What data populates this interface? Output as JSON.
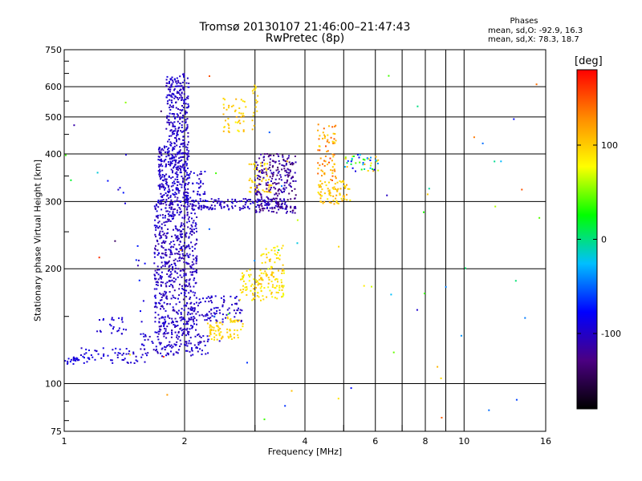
{
  "chart_data": {
    "type": "scatter",
    "title": "Tromsø 20130107 21:46:00–21:47:43",
    "subtitle": "RwPretec (8p)",
    "xlabel": "Frequency [MHz]",
    "ylabel": "Stationary phase Virtual Height [km]",
    "xscale": "log",
    "yscale": "log",
    "xlim": [
      1,
      16
    ],
    "ylim": [
      75,
      750
    ],
    "xticks": [
      1,
      2,
      4,
      6,
      8,
      10,
      16
    ],
    "xtick_labels": [
      "1",
      "2",
      "4",
      "6",
      "8",
      "10",
      "16"
    ],
    "x_minor_ticks": [
      3,
      5,
      7,
      9
    ],
    "yticks": [
      75,
      100,
      200,
      300,
      400,
      500,
      600,
      750
    ],
    "ytick_labels": [
      "75",
      "100",
      "200",
      "300",
      "400",
      "500",
      "600",
      "750"
    ],
    "grid": true,
    "phase_info": {
      "label": "Phases",
      "line_o": "mean, sd,O: -92.9, 16.3",
      "line_x": "mean, sd,X:  78.3, 18.7"
    },
    "colorbar": {
      "title": "[deg]",
      "ticks": [
        -100,
        0,
        100
      ],
      "tick_labels": [
        "-100",
        "0",
        "100"
      ],
      "range": [
        -180,
        180
      ],
      "palette": [
        "#000000",
        "#4b0082",
        "#0000ff",
        "#00bfff",
        "#00ff00",
        "#ffff00",
        "#ff8c00",
        "#ff0000"
      ]
    },
    "clusters": [
      {
        "x": [
          1.0,
          1.08
        ],
        "y": [
          112,
          118
        ],
        "phase": [
          -100,
          -80
        ],
        "count": 20
      },
      {
        "x": [
          1.08,
          1.6
        ],
        "y": [
          113,
          124
        ],
        "phase": [
          -105,
          -85
        ],
        "count": 60
      },
      {
        "x": [
          1.2,
          1.45
        ],
        "y": [
          135,
          150
        ],
        "phase": [
          -100,
          -90
        ],
        "count": 25
      },
      {
        "x": [
          1.25,
          1.45
        ],
        "y": [
          285,
          345
        ],
        "phase": [
          -100,
          -60
        ],
        "count": 5
      },
      {
        "x": [
          1.55,
          2.3
        ],
        "y": [
          118,
          135
        ],
        "phase": [
          -110,
          -90
        ],
        "count": 120
      },
      {
        "x": [
          1.68,
          2.15
        ],
        "y": [
          135,
          300
        ],
        "phase": [
          -115,
          -90
        ],
        "count": 650
      },
      {
        "x": [
          1.72,
          2.05
        ],
        "y": [
          300,
          420
        ],
        "phase": [
          -110,
          -90
        ],
        "count": 300
      },
      {
        "x": [
          1.8,
          2.05
        ],
        "y": [
          420,
          640
        ],
        "phase": [
          -110,
          -90
        ],
        "count": 200
      },
      {
        "x": [
          1.85,
          2.0
        ],
        "y": [
          540,
          650
        ],
        "phase": [
          -110,
          -95
        ],
        "count": 40
      },
      {
        "x": [
          2.0,
          2.25
        ],
        "y": [
          305,
          360
        ],
        "phase": [
          -110,
          -80
        ],
        "count": 40
      },
      {
        "x": [
          2.0,
          3.6
        ],
        "y": [
          285,
          305
        ],
        "phase": [
          -110,
          -90
        ],
        "count": 160
      },
      {
        "x": [
          2.0,
          2.8
        ],
        "y": [
          145,
          170
        ],
        "phase": [
          -110,
          -90
        ],
        "count": 100
      },
      {
        "x": [
          2.3,
          2.5
        ],
        "y": [
          130,
          145
        ],
        "phase": [
          85,
          110
        ],
        "count": 45
      },
      {
        "x": [
          2.55,
          2.8
        ],
        "y": [
          130,
          150
        ],
        "phase": [
          85,
          110
        ],
        "count": 35
      },
      {
        "x": [
          2.75,
          3.55
        ],
        "y": [
          165,
          200
        ],
        "phase": [
          70,
          110
        ],
        "count": 130
      },
      {
        "x": [
          3.1,
          3.55
        ],
        "y": [
          200,
          230
        ],
        "phase": [
          75,
          105
        ],
        "count": 30
      },
      {
        "x": [
          2.9,
          3.3
        ],
        "y": [
          315,
          380
        ],
        "phase": [
          80,
          110
        ],
        "count": 50
      },
      {
        "x": [
          3.0,
          3.8
        ],
        "y": [
          280,
          400
        ],
        "phase": [
          -140,
          -100
        ],
        "count": 250
      },
      {
        "x": [
          2.5,
          2.85
        ],
        "y": [
          450,
          560
        ],
        "phase": [
          80,
          115
        ],
        "count": 45
      },
      {
        "x": [
          2.95,
          3.05
        ],
        "y": [
          460,
          620
        ],
        "phase": [
          85,
          110
        ],
        "count": 18
      },
      {
        "x": [
          4.3,
          5.2
        ],
        "y": [
          295,
          340
        ],
        "phase": [
          85,
          120
        ],
        "count": 80
      },
      {
        "x": [
          4.3,
          4.8
        ],
        "y": [
          340,
          480
        ],
        "phase": [
          90,
          160
        ],
        "count": 70
      },
      {
        "x": [
          5.0,
          6.1
        ],
        "y": [
          360,
          400
        ],
        "phase": [
          -100,
          120
        ],
        "count": 45
      },
      {
        "x": [
          1.5,
          1.6
        ],
        "y": [
          110,
          250
        ],
        "phase": [
          -110,
          -60
        ],
        "count": 10
      },
      {
        "x": [
          1.0,
          16.0
        ],
        "y": [
          80,
          650
        ],
        "phase": [
          -150,
          170
        ],
        "count": 70
      }
    ]
  }
}
